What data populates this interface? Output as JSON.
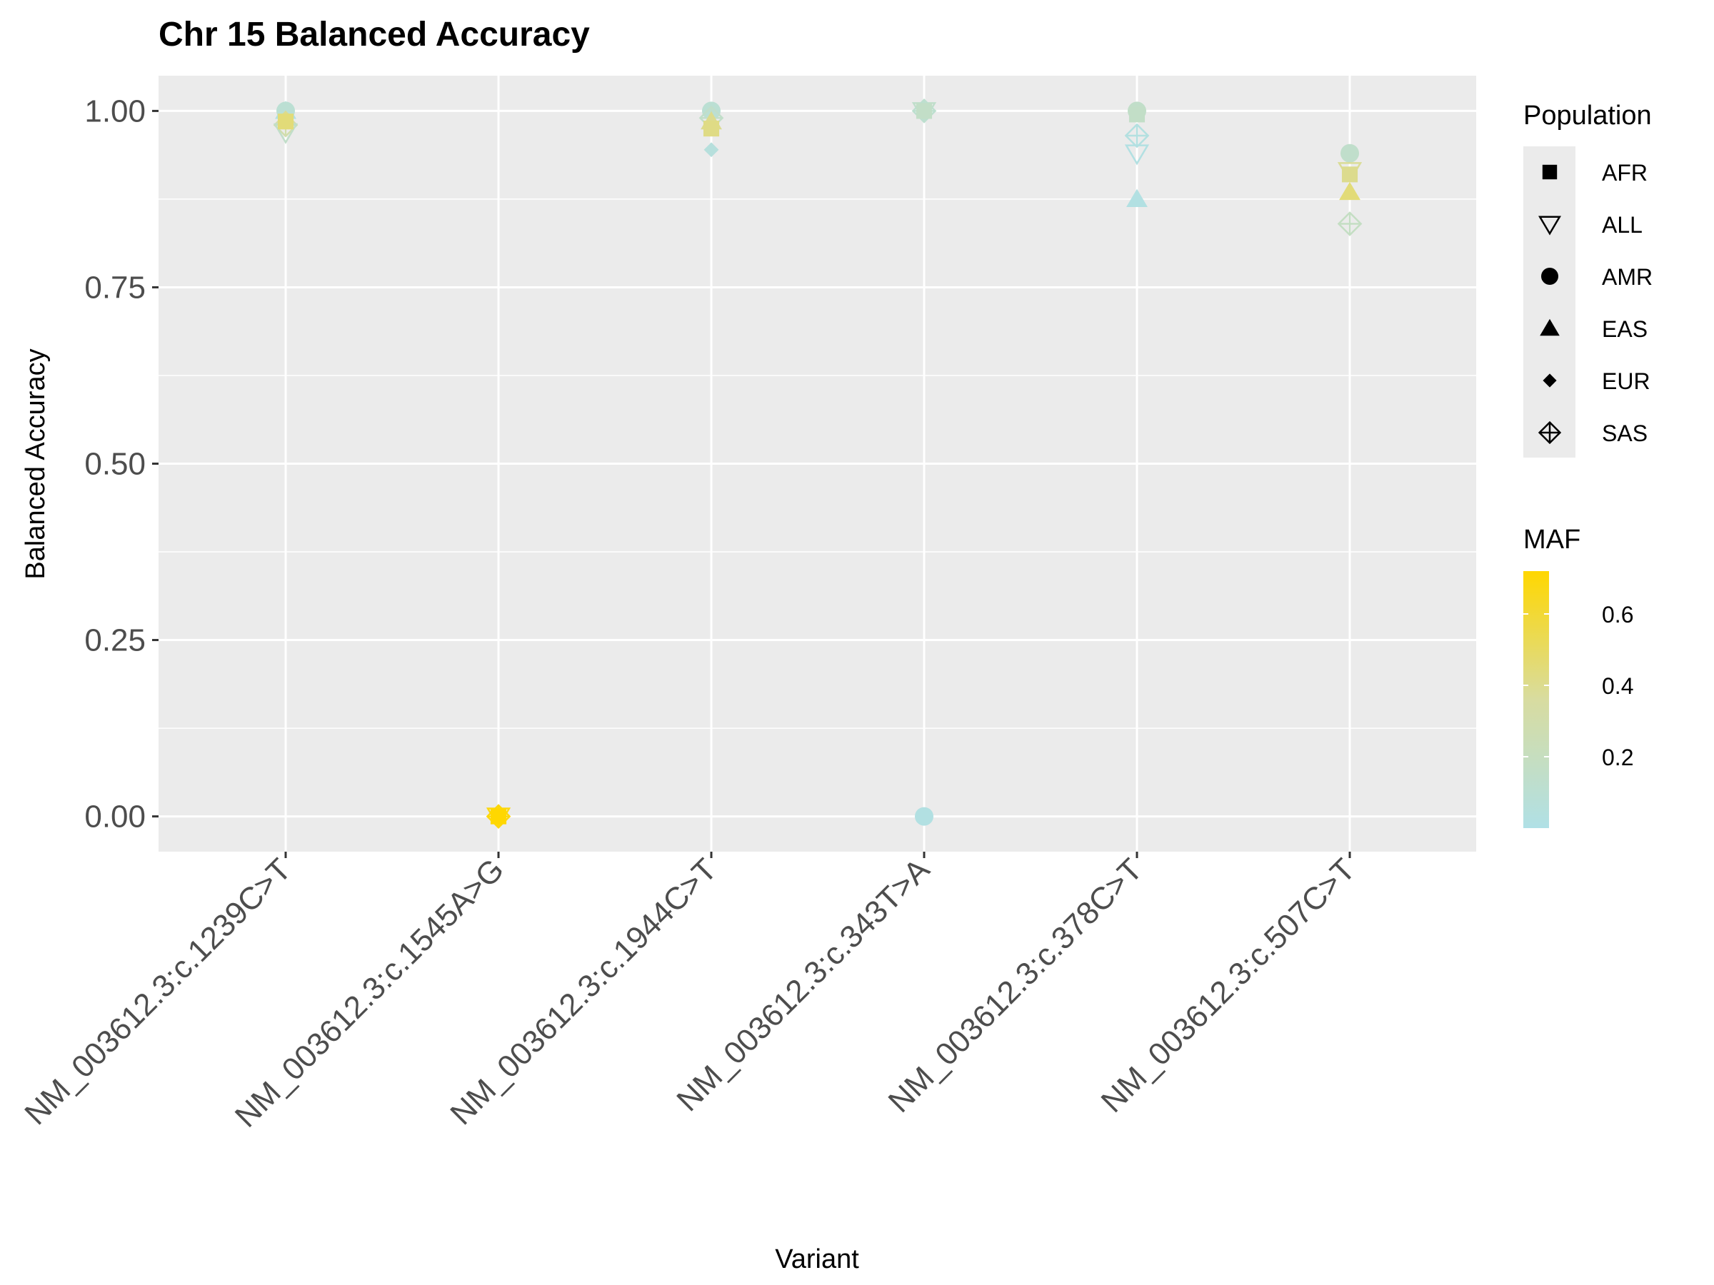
{
  "chart_data": {
    "type": "scatter",
    "title": "Chr 15 Balanced Accuracy",
    "xlabel": "Variant",
    "ylabel": "Balanced Accuracy",
    "ylim": [
      -0.05,
      1.05
    ],
    "yticks": [
      "0.00",
      "0.25",
      "0.50",
      "0.75",
      "1.00"
    ],
    "ytick_values": [
      0,
      0.25,
      0.5,
      0.75,
      1.0
    ],
    "grid": true,
    "categories": [
      "NM_003612.3:c.1239C>T",
      "NM_003612.3:c.1545A>G",
      "NM_003612.3:c.1944C>T",
      "NM_003612.3:c.343T>A",
      "NM_003612.3:c.378C>T",
      "NM_003612.3:c.507C>T"
    ],
    "shape_legend": {
      "title": "Population",
      "placement": "right",
      "entries": [
        {
          "label": "AFR",
          "shape": "square-filled"
        },
        {
          "label": "ALL",
          "shape": "triangle-down-open"
        },
        {
          "label": "AMR",
          "shape": "circle-filled"
        },
        {
          "label": "EAS",
          "shape": "triangle-up-filled"
        },
        {
          "label": "EUR",
          "shape": "diamond-filled"
        },
        {
          "label": "SAS",
          "shape": "diamond-plus-open"
        }
      ]
    },
    "color_legend": {
      "title": "MAF",
      "placement": "right",
      "low_color": "#b0e0e6",
      "mid_color": "#d8dca0",
      "high_color": "#ffd700",
      "range": [
        0.0,
        0.72
      ],
      "ticks": [
        "0.2",
        "0.4",
        "0.6"
      ],
      "tick_values": [
        0.2,
        0.4,
        0.6
      ]
    },
    "points": [
      {
        "variant": "NM_003612.3:c.1239C>T",
        "population": "EAS",
        "y": 1.0,
        "maf": 0.02
      },
      {
        "variant": "NM_003612.3:c.1239C>T",
        "population": "AMR",
        "y": 1.0,
        "maf": 0.1
      },
      {
        "variant": "NM_003612.3:c.1239C>T",
        "population": "SAS",
        "y": 0.98,
        "maf": 0.3
      },
      {
        "variant": "NM_003612.3:c.1239C>T",
        "population": "ALL",
        "y": 0.97,
        "maf": 0.15
      },
      {
        "variant": "NM_003612.3:c.1239C>T",
        "population": "EUR",
        "y": 0.99,
        "maf": 0.4
      },
      {
        "variant": "NM_003612.3:c.1239C>T",
        "population": "AFR",
        "y": 0.985,
        "maf": 0.45
      },
      {
        "variant": "NM_003612.3:c.1545A>G",
        "population": "ALL",
        "y": 0.0,
        "maf": 0.68
      },
      {
        "variant": "NM_003612.3:c.1545A>G",
        "population": "SAS",
        "y": 0.0,
        "maf": 0.7
      },
      {
        "variant": "NM_003612.3:c.1545A>G",
        "population": "AFR",
        "y": 0.0,
        "maf": 0.72
      },
      {
        "variant": "NM_003612.3:c.1944C>T",
        "population": "AMR",
        "y": 1.0,
        "maf": 0.1
      },
      {
        "variant": "NM_003612.3:c.1944C>T",
        "population": "SAS",
        "y": 0.99,
        "maf": 0.15
      },
      {
        "variant": "NM_003612.3:c.1944C>T",
        "population": "EAS",
        "y": 0.985,
        "maf": 0.4
      },
      {
        "variant": "NM_003612.3:c.1944C>T",
        "population": "AFR",
        "y": 0.975,
        "maf": 0.42
      },
      {
        "variant": "NM_003612.3:c.1944C>T",
        "population": "EUR",
        "y": 0.945,
        "maf": 0.05
      },
      {
        "variant": "NM_003612.3:c.343T>A",
        "population": "ALL",
        "y": 1.0,
        "maf": 0.14
      },
      {
        "variant": "NM_003612.3:c.343T>A",
        "population": "SAS",
        "y": 1.0,
        "maf": 0.12
      },
      {
        "variant": "NM_003612.3:c.343T>A",
        "population": "AFR",
        "y": 1.0,
        "maf": 0.16
      },
      {
        "variant": "NM_003612.3:c.343T>A",
        "population": "AMR",
        "y": 0.0,
        "maf": 0.02
      },
      {
        "variant": "NM_003612.3:c.378C>T",
        "population": "AMR",
        "y": 1.0,
        "maf": 0.15
      },
      {
        "variant": "NM_003612.3:c.378C>T",
        "population": "AFR",
        "y": 0.995,
        "maf": 0.16
      },
      {
        "variant": "NM_003612.3:c.378C>T",
        "population": "SAS",
        "y": 0.965,
        "maf": 0.03
      },
      {
        "variant": "NM_003612.3:c.378C>T",
        "population": "ALL",
        "y": 0.94,
        "maf": 0.02
      },
      {
        "variant": "NM_003612.3:c.378C>T",
        "population": "EAS",
        "y": 0.875,
        "maf": 0.02
      },
      {
        "variant": "NM_003612.3:c.507C>T",
        "population": "AMR",
        "y": 0.94,
        "maf": 0.14
      },
      {
        "variant": "NM_003612.3:c.507C>T",
        "population": "ALL",
        "y": 0.915,
        "maf": 0.38
      },
      {
        "variant": "NM_003612.3:c.507C>T",
        "population": "AFR",
        "y": 0.91,
        "maf": 0.4
      },
      {
        "variant": "NM_003612.3:c.507C>T",
        "population": "EAS",
        "y": 0.885,
        "maf": 0.45
      },
      {
        "variant": "NM_003612.3:c.507C>T",
        "population": "SAS",
        "y": 0.84,
        "maf": 0.18
      }
    ]
  }
}
